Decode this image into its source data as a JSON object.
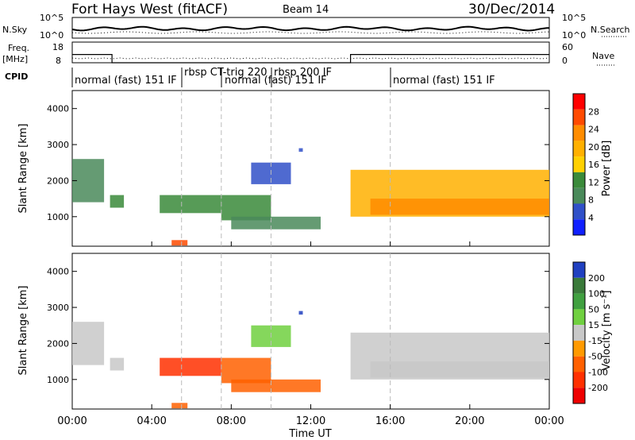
{
  "header": {
    "title": "Fort Hays West (fitACF)",
    "beam": "Beam 14",
    "date": "30/Dec/2014"
  },
  "top_panel": {
    "left_label": "N.Sky",
    "left_ticks": [
      "10^5",
      "10^0"
    ],
    "right_label": "N.Search",
    "right_ticks": [
      "10^5",
      "10^0"
    ]
  },
  "freq_panel": {
    "left_label_1": "Freq.",
    "left_label_2": "[MHz]",
    "left_ticks": [
      "18",
      "8"
    ],
    "right_label": "Nave",
    "right_ticks": [
      "60",
      "0"
    ]
  },
  "cpid": {
    "label": "CPID",
    "segments": [
      {
        "text": "normal (fast) 151 IF"
      },
      {
        "text": "rbsp CT-trig 220"
      },
      {
        "text": "normal (fast) 151 IF"
      },
      {
        "text": "rbsp 200 IF"
      },
      {
        "text": "normal (fast) 151 IF"
      }
    ]
  },
  "power_panel": {
    "ylabel": "Slant Range [km]",
    "yticks": [
      "4000",
      "3000",
      "2000",
      "1000"
    ],
    "colorbar_label": "Power [dB]",
    "colorbar_ticks": [
      "28",
      "24",
      "20",
      "16",
      "12",
      "8",
      "4"
    ],
    "colorbar_colors": [
      "#ff0000",
      "#ff4a00",
      "#ff8c00",
      "#ffb000",
      "#ffd000",
      "#3a8a3a",
      "#4a8a5a",
      "#3050c8",
      "#1020ff"
    ]
  },
  "velocity_panel": {
    "ylabel": "Slant Range [km]",
    "yticks": [
      "4000",
      "3000",
      "2000",
      "1000"
    ],
    "colorbar_label": "Velocity [m s⁻¹]",
    "colorbar_ticks": [
      "200",
      "100",
      "50",
      "15",
      "-15",
      "-50",
      "-100",
      "-200"
    ],
    "colorbar_colors": [
      "#2040c0",
      "#3a7a3a",
      "#40a040",
      "#70d040",
      "#c8c8c8",
      "#ff9a00",
      "#ff6000",
      "#ff3000",
      "#ee0000"
    ]
  },
  "xaxis": {
    "label": "Time UT",
    "ticks": [
      "00:00",
      "04:00",
      "08:00",
      "12:00",
      "16:00",
      "20:00",
      "00:00"
    ]
  },
  "chart_data": {
    "type": "heatmap",
    "title": "Fort Hays West (fitACF)",
    "subtitle": "Beam 14 30/Dec/2014",
    "xlabel": "Time UT",
    "ylabel": "Slant Range [km]",
    "xlim_hours": [
      0,
      24
    ],
    "ylim_km": [
      180,
      4500
    ],
    "grid": false,
    "dashed_time_markers_hours": [
      5.5,
      7.5,
      10.0,
      16.0
    ],
    "freq_mhz": [
      {
        "start_h": 0,
        "end_h": 2,
        "value": 12
      },
      {
        "start_h": 2,
        "end_h": 14,
        "value": 8
      },
      {
        "start_h": 14,
        "end_h": 24,
        "value": 12
      }
    ],
    "cpid_segments": [
      {
        "name": "normal (fast) 151 IF",
        "start_h": 0,
        "end_h": 5.5
      },
      {
        "name": "rbsp CT-trig 220",
        "start_h": 5.5,
        "end_h": 7.5
      },
      {
        "name": "normal (fast) 151 IF",
        "start_h": 7.5,
        "end_h": 10.0
      },
      {
        "name": "rbsp 200 IF",
        "start_h": 10.0,
        "end_h": 16.0
      },
      {
        "name": "normal (fast) 151 IF",
        "start_h": 16.0,
        "end_h": 24
      }
    ],
    "power": {
      "units": "dB",
      "range": [
        0,
        30
      ],
      "patches": [
        {
          "start_h": 0.0,
          "end_h": 1.6,
          "r_lo": 1400,
          "r_hi": 2600,
          "value": 10
        },
        {
          "start_h": 1.9,
          "end_h": 2.6,
          "r_lo": 1250,
          "r_hi": 1600,
          "value": 14
        },
        {
          "start_h": 4.4,
          "end_h": 7.5,
          "r_lo": 1100,
          "r_hi": 1600,
          "value": 12
        },
        {
          "start_h": 5.0,
          "end_h": 5.8,
          "r_lo": 200,
          "r_hi": 350,
          "value": 22
        },
        {
          "start_h": 7.5,
          "end_h": 10.0,
          "r_lo": 900,
          "r_hi": 1600,
          "value": 14
        },
        {
          "start_h": 8.0,
          "end_h": 12.5,
          "r_lo": 650,
          "r_hi": 1000,
          "value": 10
        },
        {
          "start_h": 9.0,
          "end_h": 11.0,
          "r_lo": 1900,
          "r_hi": 2500,
          "value": 6
        },
        {
          "start_h": 11.4,
          "end_h": 11.6,
          "r_lo": 2800,
          "r_hi": 2900,
          "value": 6
        },
        {
          "start_h": 14.0,
          "end_h": 24.0,
          "r_lo": 1000,
          "r_hi": 2300,
          "value": 16
        },
        {
          "start_h": 15.0,
          "end_h": 24.0,
          "r_lo": 1050,
          "r_hi": 1500,
          "value": 20
        }
      ]
    },
    "velocity": {
      "units": "m/s",
      "range": [
        -200,
        200
      ],
      "patches": [
        {
          "start_h": 0.0,
          "end_h": 1.6,
          "r_lo": 1400,
          "r_hi": 2600,
          "value": 0
        },
        {
          "start_h": 1.9,
          "end_h": 2.6,
          "r_lo": 1250,
          "r_hi": 1600,
          "value": 0
        },
        {
          "start_h": 4.4,
          "end_h": 7.5,
          "r_lo": 1100,
          "r_hi": 1600,
          "value": -150
        },
        {
          "start_h": 5.0,
          "end_h": 5.8,
          "r_lo": 200,
          "r_hi": 350,
          "value": -80
        },
        {
          "start_h": 7.5,
          "end_h": 10.0,
          "r_lo": 900,
          "r_hi": 1600,
          "value": -80
        },
        {
          "start_h": 8.0,
          "end_h": 12.5,
          "r_lo": 650,
          "r_hi": 1000,
          "value": -60
        },
        {
          "start_h": 9.0,
          "end_h": 11.0,
          "r_lo": 1900,
          "r_hi": 2500,
          "value": 20
        },
        {
          "start_h": 11.4,
          "end_h": 11.6,
          "r_lo": 2800,
          "r_hi": 2900,
          "value": 200
        },
        {
          "start_h": 14.0,
          "end_h": 24.0,
          "r_lo": 1000,
          "r_hi": 2300,
          "value": 0
        },
        {
          "start_h": 15.0,
          "end_h": 24.0,
          "r_lo": 1050,
          "r_hi": 1500,
          "value": 0
        }
      ]
    }
  }
}
